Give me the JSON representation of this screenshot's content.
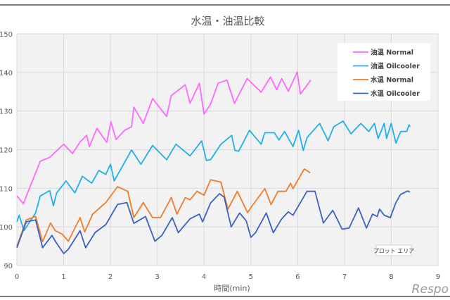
{
  "chart_data": {
    "type": "line",
    "title": "水温・油温比較",
    "xlabel": "時間(min)",
    "ylabel": "",
    "xlim": [
      0,
      9
    ],
    "ylim": [
      90,
      150
    ],
    "xticks": [
      "0",
      "1",
      "2",
      "3",
      "4",
      "5",
      "6",
      "7",
      "8",
      "9"
    ],
    "yticks": [
      "90",
      "100",
      "110",
      "120",
      "130",
      "140",
      "150"
    ],
    "grid": true,
    "legend": "top-right",
    "series": [
      {
        "name": "油温 Normal",
        "color": "#ff66ff",
        "x": [
          0,
          0.14,
          0.3,
          0.5,
          0.7,
          1.0,
          1.19,
          1.35,
          1.49,
          1.55,
          1.71,
          1.92,
          2.01,
          2.12,
          2.3,
          2.45,
          2.5,
          2.7,
          2.9,
          3.2,
          3.3,
          3.6,
          3.7,
          3.9,
          4.0,
          4.14,
          4.3,
          4.49,
          4.65,
          4.92,
          5.22,
          5.42,
          5.55,
          5.66,
          5.8,
          5.99,
          6.06,
          6.28
        ],
        "y": [
          108,
          106,
          111,
          117,
          118,
          121.4,
          119,
          122,
          123.7,
          120.8,
          125.5,
          121.9,
          127.2,
          122.6,
          125,
          125.9,
          131,
          126.8,
          133.2,
          128.6,
          134,
          136.8,
          132,
          137.2,
          129.2,
          131.8,
          137.2,
          138,
          132,
          138.4,
          134.9,
          138.8,
          135.5,
          138.4,
          135.1,
          140.1,
          134.4,
          138
        ]
      },
      {
        "name": "油温 Oilcooler",
        "color": "#1fb0ec",
        "x": [
          0,
          0.05,
          0.15,
          0.4,
          0.5,
          0.7,
          0.78,
          0.85,
          1.05,
          1.24,
          1.4,
          1.6,
          1.75,
          1.9,
          2.0,
          2.08,
          2.45,
          2.65,
          2.9,
          3.2,
          3.4,
          3.7,
          3.95,
          4.05,
          4.14,
          4.36,
          4.59,
          4.66,
          4.74,
          4.97,
          5.22,
          5.3,
          5.5,
          5.6,
          5.72,
          5.9,
          6.02,
          6.12,
          6.2,
          6.47,
          6.65,
          6.77,
          6.97,
          7.14,
          7.35,
          7.52,
          7.64,
          7.72,
          7.85,
          7.9,
          8.0,
          8.1,
          8.2,
          8.33,
          8.38,
          8.4
        ],
        "y": [
          101.3,
          103,
          99,
          103.6,
          108,
          109.4,
          105.5,
          108.8,
          111.9,
          108.8,
          113.1,
          111.3,
          114.6,
          113.6,
          116.2,
          111.9,
          119.9,
          116.2,
          121.1,
          117.4,
          121.4,
          118.4,
          122.3,
          117.2,
          117.4,
          121.4,
          123.7,
          119.8,
          119.6,
          125,
          121.4,
          124.4,
          124.4,
          122.5,
          124.7,
          120.8,
          125,
          119.8,
          123.1,
          126.8,
          122.3,
          125.9,
          127.4,
          124.1,
          126.8,
          124.7,
          126.8,
          122.9,
          126.8,
          122.9,
          126.8,
          121.7,
          124.7,
          124.7,
          126.4,
          125.9
        ]
      },
      {
        "name": "水温 Normal",
        "color": "#f07c28",
        "x": [
          0,
          0.2,
          0.4,
          0.55,
          0.72,
          0.82,
          0.97,
          1.1,
          1.35,
          1.45,
          1.62,
          1.9,
          2.15,
          2.37,
          2.5,
          2.7,
          2.9,
          3.07,
          3.3,
          3.42,
          3.6,
          3.7,
          3.85,
          4.0,
          4.14,
          4.36,
          4.51,
          4.71,
          4.93,
          5.03,
          5.3,
          5.43,
          5.58,
          5.75,
          5.85,
          5.9,
          6.14,
          6.27
        ],
        "y": [
          94.9,
          101.8,
          102.7,
          96.2,
          101,
          99,
          98.1,
          96.3,
          102.4,
          98.7,
          103.3,
          106.3,
          110.4,
          109.2,
          102.4,
          106.3,
          102.4,
          102.4,
          107.6,
          103.3,
          107.6,
          107,
          109.2,
          108.2,
          112.2,
          111.6,
          104.6,
          109.2,
          103.7,
          105.5,
          109.9,
          105.8,
          109.2,
          109.2,
          111.3,
          109.9,
          115,
          114
        ]
      },
      {
        "name": "水温 Oilcooler",
        "color": "#3a62c0",
        "x": [
          0,
          0.2,
          0.4,
          0.55,
          0.75,
          0.82,
          1.0,
          1.1,
          1.35,
          1.47,
          1.67,
          1.9,
          2.15,
          2.35,
          2.5,
          2.75,
          2.95,
          3.1,
          3.32,
          3.45,
          3.7,
          3.9,
          3.97,
          4.14,
          4.33,
          4.43,
          4.58,
          4.76,
          4.9,
          5.0,
          5.1,
          5.33,
          5.48,
          5.66,
          5.8,
          5.9,
          6.2,
          6.37,
          6.55,
          6.75,
          6.95,
          7.1,
          7.3,
          7.47,
          7.6,
          7.7,
          7.75,
          7.85,
          7.98,
          8.1,
          8.2,
          8.35,
          8.4
        ],
        "y": [
          94.6,
          101.3,
          101.8,
          94.6,
          97.8,
          96.3,
          93.1,
          94.2,
          99,
          94.6,
          98.5,
          100.6,
          105.8,
          106.3,
          100.9,
          102.7,
          96.3,
          97.8,
          102.4,
          98.5,
          102.1,
          103.3,
          101.3,
          106.2,
          108.6,
          107.7,
          100,
          103.6,
          101.6,
          97.3,
          98.5,
          103.6,
          98.5,
          102.1,
          103.9,
          103,
          109.2,
          109.2,
          101,
          104.3,
          99.4,
          99.7,
          104.9,
          99.7,
          103.3,
          102.7,
          104.6,
          103,
          102.4,
          106.3,
          108.4,
          109.3,
          109
        ]
      }
    ]
  },
  "tooltip": "プロット エリア",
  "watermark": "Respo"
}
